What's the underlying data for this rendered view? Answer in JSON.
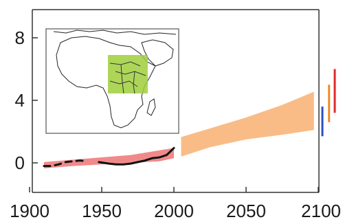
{
  "chart_data": {
    "type": "line",
    "title": "",
    "xlabel": "",
    "ylabel": "",
    "xlim": [
      1900,
      2100
    ],
    "ylim": [
      -2,
      10
    ],
    "xticks": [
      1900,
      1950,
      2000,
      2050,
      2100
    ],
    "yticks": [
      0,
      4,
      8
    ],
    "grid": false,
    "legend": "none",
    "inset": {
      "content": "map of Africa with highlighted region",
      "highlight_color": "#9fcf3c"
    },
    "series": [
      {
        "style": "observed-dashed",
        "color": "#111111",
        "points": [
          [
            1910,
            -0.2
          ],
          [
            1915,
            -0.2
          ],
          [
            1920,
            -0.1
          ],
          [
            1925,
            0.05
          ],
          [
            1930,
            0.1
          ],
          [
            1935,
            0.15
          ],
          [
            1940,
            0.1
          ]
        ]
      },
      {
        "style": "observed-solid",
        "color": "#111111",
        "points": [
          [
            1948,
            0.05
          ],
          [
            1955,
            -0.05
          ],
          [
            1960,
            -0.1
          ],
          [
            1965,
            -0.1
          ],
          [
            1970,
            -0.05
          ],
          [
            1975,
            0.05
          ],
          [
            1980,
            0.15
          ],
          [
            1985,
            0.3
          ],
          [
            1990,
            0.35
          ],
          [
            1995,
            0.5
          ],
          [
            2000,
            0.95
          ]
        ]
      },
      {
        "style": "historical-band",
        "color": "#f08a8a",
        "upper": [
          [
            1910,
            0.05
          ],
          [
            1930,
            0.2
          ],
          [
            1950,
            0.35
          ],
          [
            1970,
            0.5
          ],
          [
            1990,
            0.8
          ],
          [
            2000,
            0.95
          ]
        ],
        "lower": [
          [
            1910,
            -0.35
          ],
          [
            1930,
            -0.2
          ],
          [
            1950,
            -0.1
          ],
          [
            1970,
            0.0
          ],
          [
            1990,
            0.1
          ],
          [
            2000,
            0.3
          ]
        ]
      },
      {
        "style": "projection-band",
        "color": "#f9bc87",
        "upper": [
          [
            2005,
            1.65
          ],
          [
            2025,
            2.2
          ],
          [
            2050,
            2.9
          ],
          [
            2075,
            3.7
          ],
          [
            2097,
            4.55
          ]
        ],
        "lower": [
          [
            2005,
            0.4
          ],
          [
            2025,
            1.0
          ],
          [
            2050,
            1.5
          ],
          [
            2075,
            1.8
          ],
          [
            2097,
            2.1
          ]
        ]
      }
    ],
    "ranges": [
      {
        "x": 2105,
        "low": 1.7,
        "high": 3.6,
        "color": "#2b4fbf"
      },
      {
        "x": 2112,
        "low": 2.6,
        "high": 5.0,
        "color": "#f08a2a"
      },
      {
        "x": 2118,
        "low": 3.2,
        "high": 6.0,
        "color": "#e02828"
      }
    ]
  }
}
